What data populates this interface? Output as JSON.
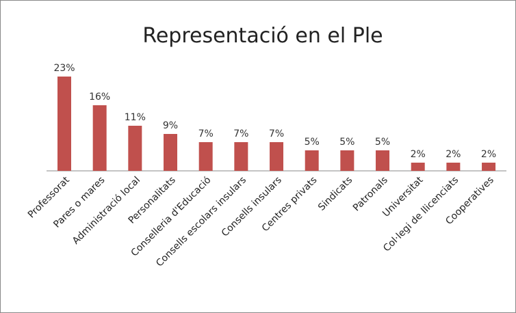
{
  "chart_data": {
    "type": "bar",
    "title": "Representació en el Ple",
    "categories": [
      "Professorat",
      "Pares o mares",
      "Administració local",
      "Personalitats",
      "Conselleria d'Educació",
      "Consells escolars insulars",
      "Consells insulars",
      "Centres privats",
      "Sindicats",
      "Patronals",
      "Universitat",
      "Col·legi de llicenciats",
      "Cooperatives"
    ],
    "values": [
      23,
      16,
      11,
      9,
      7,
      7,
      7,
      5,
      5,
      5,
      2,
      2,
      2
    ],
    "value_labels": [
      "23%",
      "16%",
      "11%",
      "9%",
      "7%",
      "7%",
      "7%",
      "5%",
      "5%",
      "5%",
      "2%",
      "2%",
      "2%"
    ],
    "color": "#c0504d"
  }
}
